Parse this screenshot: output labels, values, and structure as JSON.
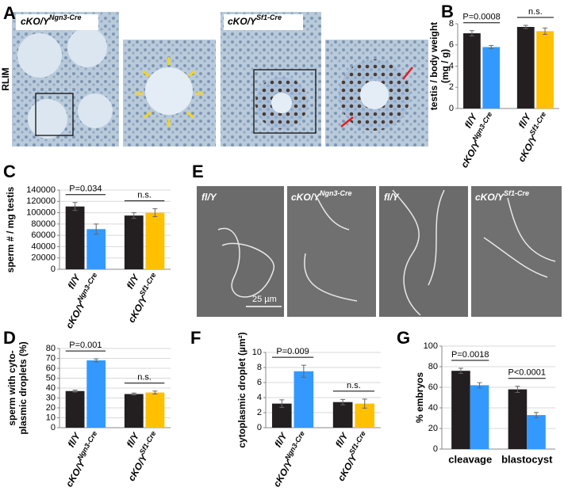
{
  "panel_letters": [
    "A",
    "B",
    "C",
    "D",
    "E",
    "F",
    "G"
  ],
  "panel_a": {
    "labels": [
      "cKO/YNgn3-Cre",
      "cKO/YSf1-Cre"
    ],
    "side_label": "RLIM"
  },
  "panel_e": {
    "labels": [
      "fl/Y",
      "cKO/YNgn3-Cre",
      "fl/Y",
      "cKO/YSf1-Cre"
    ],
    "scale_bar": "25 µm"
  },
  "chart_data": [
    {
      "type": "bar",
      "ylabel": [
        "testis / body weight",
        "(mg / g)"
      ],
      "categories": [
        "fl/Y",
        "cKO/YNgn3-Cre",
        "fl/Y",
        "cKO/YSf1-Cre"
      ],
      "values": [
        7.1,
        5.8,
        7.7,
        7.3
      ],
      "errors": [
        0.25,
        0.15,
        0.15,
        0.3
      ],
      "colors": [
        "#231f20",
        "#3399ff",
        "#231f20",
        "#ffc000"
      ],
      "annotations": [
        "P=0.0008",
        "n.s."
      ],
      "ylim": [
        0,
        8
      ],
      "yticks": [
        0,
        2,
        4,
        6,
        8
      ],
      "grid": false
    },
    {
      "type": "bar",
      "ylabel": [
        "sperm # / mg testis"
      ],
      "categories": [
        "fl/Y",
        "cKO/YNgn3-Cre",
        "fl/Y",
        "cKO/YSf1-Cre"
      ],
      "values": [
        111000,
        71000,
        95000,
        100000
      ],
      "errors": [
        7000,
        9000,
        5000,
        7000
      ],
      "colors": [
        "#231f20",
        "#3399ff",
        "#231f20",
        "#ffc000"
      ],
      "annotations": [
        "P=0.034",
        "n.s."
      ],
      "ylim": [
        0,
        140000
      ],
      "yticks": [
        0,
        20000,
        40000,
        60000,
        80000,
        100000,
        120000,
        140000
      ],
      "grid": true
    },
    {
      "type": "bar",
      "ylabel": [
        "sperm with cyto-",
        "plasmic droplets (%)"
      ],
      "categories": [
        "fl/Y",
        "cKO/YNgn3-Cre",
        "fl/Y",
        "cKO/YSf1-Cre"
      ],
      "values": [
        37,
        68,
        34,
        35.5
      ],
      "errors": [
        1,
        1.5,
        1,
        1.5
      ],
      "colors": [
        "#231f20",
        "#3399ff",
        "#231f20",
        "#ffc000"
      ],
      "annotations": [
        "P=0.001",
        "n.s."
      ],
      "ylim": [
        0,
        80
      ],
      "yticks": [
        0,
        10,
        20,
        30,
        40,
        50,
        60,
        70,
        80
      ],
      "grid": true
    },
    {
      "type": "bar",
      "ylabel": [
        "cytoplasmic droplet (µm²)"
      ],
      "categories": [
        "fl/Y",
        "cKO/YNgn3-Cre",
        "fl/Y",
        "cKO/YSf1-Cre"
      ],
      "values": [
        3.2,
        7.5,
        3.4,
        3.2
      ],
      "errors": [
        0.5,
        0.8,
        0.35,
        0.6
      ],
      "colors": [
        "#231f20",
        "#3399ff",
        "#231f20",
        "#ffc000"
      ],
      "annotations": [
        "P=0.009",
        "n.s."
      ],
      "ylim": [
        0,
        10
      ],
      "yticks": [
        0,
        2,
        4,
        6,
        8,
        10
      ],
      "grid": true
    },
    {
      "type": "grouped_bar",
      "ylabel": [
        "% embryos"
      ],
      "categories": [
        "cleavage",
        "blastocyst"
      ],
      "series": [
        {
          "color": "#231f20",
          "values": [
            76,
            58
          ],
          "errors": [
            2.5,
            3
          ]
        },
        {
          "color": "#3399ff",
          "values": [
            62,
            33
          ],
          "errors": [
            2.5,
            2.5
          ]
        }
      ],
      "annotations": [
        "P=0.0018",
        "P<0.0001"
      ],
      "ylim": [
        0,
        100
      ],
      "yticks": [
        0,
        20,
        40,
        60,
        80,
        100
      ],
      "grid": true
    }
  ]
}
